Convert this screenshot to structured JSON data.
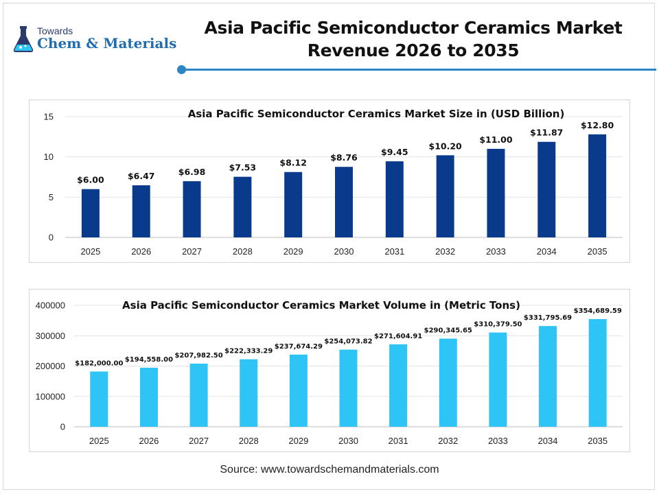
{
  "brand": {
    "line1": "Towards",
    "line2": "Chem & Materials"
  },
  "title": {
    "line1": "Asia Pacific Semiconductor Ceramics Market",
    "line2": "Revenue 2026 to 2035"
  },
  "source": "Source: www.towardschemandmaterials.com",
  "colors": {
    "accent": "#2b86c5",
    "revenue_bar": "#0a3a8c",
    "volume_bar": "#2ec4f5"
  },
  "chart_data": [
    {
      "type": "bar",
      "title": "Asia Pacific Semiconductor Ceramics Market Size in (USD Billion)",
      "categories": [
        "2025",
        "2026",
        "2027",
        "2028",
        "2029",
        "2030",
        "2031",
        "2032",
        "2033",
        "2034",
        "2035"
      ],
      "values": [
        6.0,
        6.47,
        6.98,
        7.53,
        8.12,
        8.76,
        9.45,
        10.2,
        11.0,
        11.87,
        12.8
      ],
      "data_labels": [
        "$6.00",
        "$6.47",
        "$6.98",
        "$7.53",
        "$8.12",
        "$8.76",
        "$9.45",
        "$10.20",
        "$11.00",
        "$11.87",
        "$12.80"
      ],
      "ylim": [
        0,
        15
      ],
      "yticks": [
        "0",
        "5",
        "10",
        "15"
      ],
      "grid": true,
      "legend": "none"
    },
    {
      "type": "bar",
      "title": "Asia Pacific Semiconductor Ceramics Market Volume in (Metric Tons)",
      "categories": [
        "2025",
        "2026",
        "2027",
        "2028",
        "2029",
        "2030",
        "2031",
        "2032",
        "2033",
        "2034",
        "2035"
      ],
      "values": [
        182000.0,
        194558.0,
        207982.5,
        222333.29,
        237674.29,
        254073.82,
        271604.91,
        290345.65,
        310379.5,
        331795.69,
        354689.59
      ],
      "data_labels": [
        "$182,000.00",
        "$194,558.00",
        "$207,982.50",
        "$222,333.29",
        "$237,674.29",
        "$254,073.82",
        "$271,604.91",
        "$290,345.65",
        "$310,379.50",
        "$331,795.69",
        "$354,689.59"
      ],
      "ylim": [
        0,
        400000
      ],
      "yticks": [
        "0",
        "100000",
        "200000",
        "300000",
        "400000"
      ],
      "grid": true,
      "legend": "none"
    }
  ]
}
